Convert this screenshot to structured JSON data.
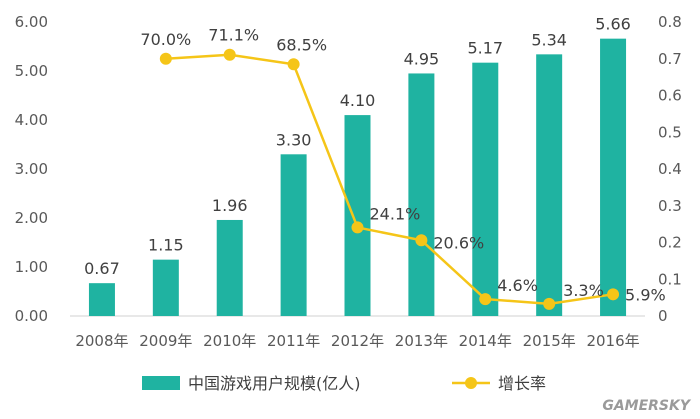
{
  "chart_data": {
    "type": "bar+line",
    "categories": [
      "2008年",
      "2009年",
      "2010年",
      "2011年",
      "2012年",
      "2013年",
      "2014年",
      "2015年",
      "2016年"
    ],
    "series": [
      {
        "name": "中国游戏用户规模(亿人)",
        "type": "bar",
        "axis": "left",
        "values": [
          0.67,
          1.15,
          1.96,
          3.3,
          4.1,
          4.95,
          5.17,
          5.34,
          5.66
        ],
        "labels": [
          "0.67",
          "1.15",
          "1.96",
          "3.30",
          "4.10",
          "4.95",
          "5.17",
          "5.34",
          "5.66"
        ],
        "color": "#1fb3a1"
      },
      {
        "name": "增长率",
        "type": "line",
        "axis": "right",
        "values": [
          null,
          0.7,
          0.711,
          0.685,
          0.241,
          0.206,
          0.046,
          0.033,
          0.059
        ],
        "labels": [
          "",
          "70.0%",
          "71.1%",
          "68.5%",
          "24.1%",
          "20.6%",
          "4.6%",
          "3.3%",
          "5.9%"
        ],
        "color": "#f5c518"
      }
    ],
    "y_left": {
      "range": [
        0,
        6
      ],
      "ticks": [
        "0.00",
        "1.00",
        "2.00",
        "3.00",
        "4.00",
        "5.00",
        "6.00"
      ]
    },
    "y_right": {
      "range": [
        0,
        0.8
      ],
      "ticks": [
        "0",
        "0.1",
        "0.2",
        "0.3",
        "0.4",
        "0.5",
        "0.6",
        "0.7",
        "0.8"
      ]
    },
    "grid": false,
    "legend": "bottom"
  },
  "watermark": "GAMERSKY"
}
